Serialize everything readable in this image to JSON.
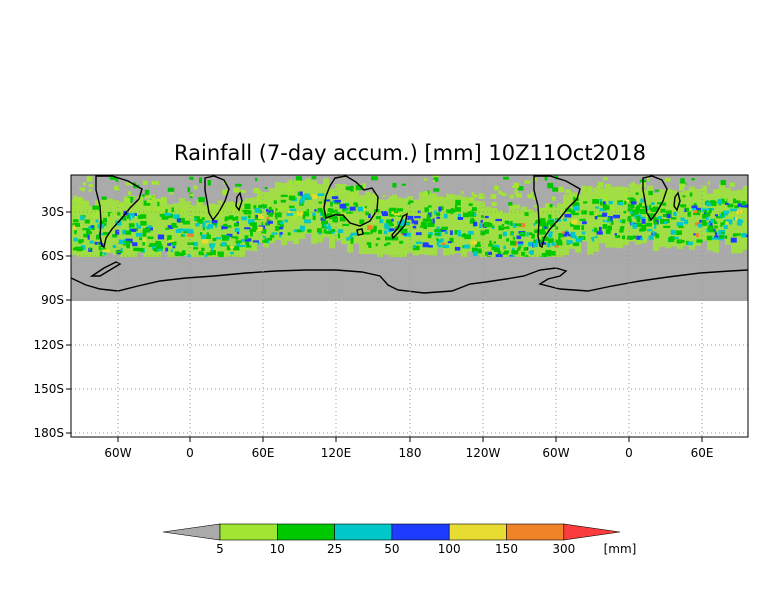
{
  "map": {
    "title": "Rainfall (7-day accum.) [mm] 10Z11Oct2018",
    "y_ticks": [
      "30S",
      "60S",
      "90S",
      "120S",
      "150S",
      "180S"
    ],
    "x_ticks": [
      "60W",
      "0",
      "60E",
      "120E",
      "180",
      "120W",
      "60W",
      "0",
      "60E"
    ],
    "nodata_color": "#aaaaaa"
  },
  "colorbar": {
    "unit": "[mm]",
    "colors": [
      "#aaaaaa",
      "#a0e632",
      "#00c800",
      "#00c8c8",
      "#1e3cff",
      "#e6dc32",
      "#f08228",
      "#fa3c3c"
    ],
    "levels": [
      "5",
      "10",
      "25",
      "50",
      "100",
      "150",
      "300"
    ]
  }
}
